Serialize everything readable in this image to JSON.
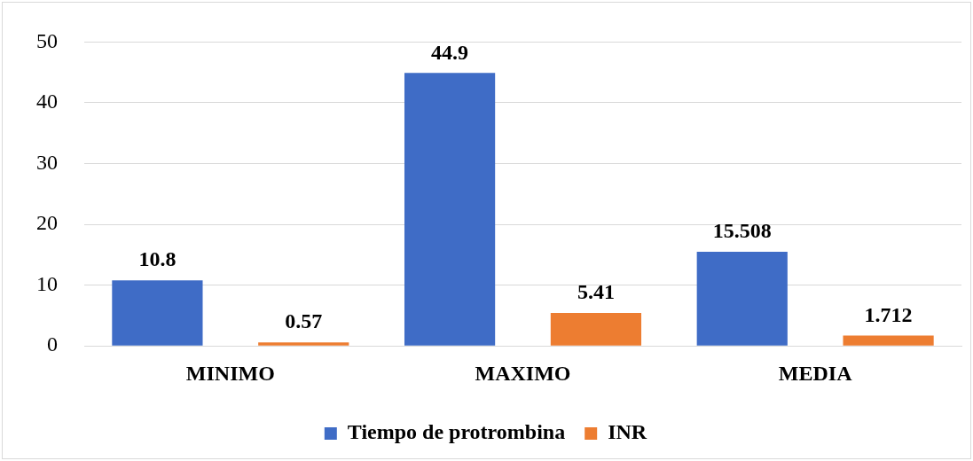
{
  "chart_data": {
    "type": "bar",
    "categories": [
      "MINIMO",
      "MAXIMO",
      "MEDIA"
    ],
    "series": [
      {
        "name": "Tiempo de protrombina",
        "color": "#3f6cc6",
        "values": [
          10.8,
          44.9,
          15.508
        ]
      },
      {
        "name": "INR",
        "color": "#ed7d31",
        "values": [
          0.57,
          5.41,
          1.712
        ]
      }
    ],
    "ylim": [
      0,
      50
    ],
    "yticks": [
      0,
      10,
      20,
      30,
      40,
      50
    ],
    "grid": "y",
    "legend": "bottom",
    "data_labels": true
  }
}
